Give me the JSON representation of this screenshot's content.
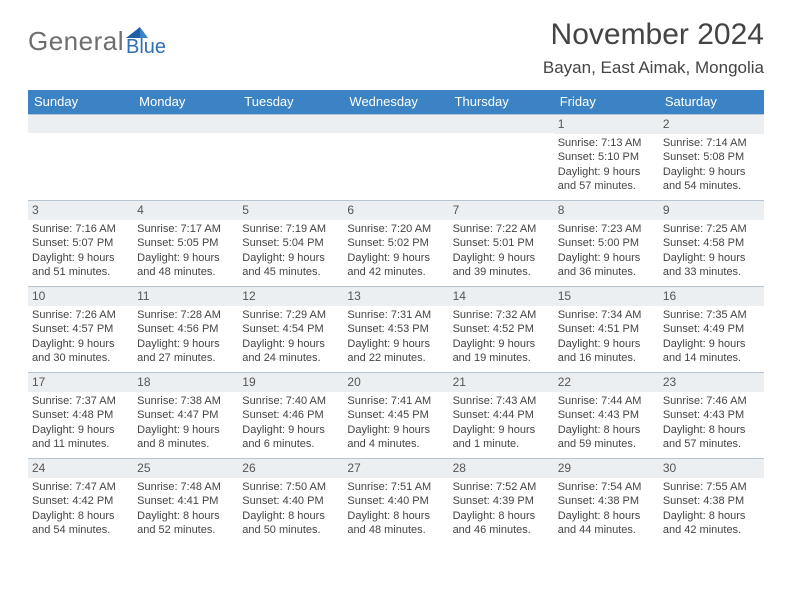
{
  "logo": {
    "general": "General",
    "blue": "Blue"
  },
  "title": "November 2024",
  "location": "Bayan, East Aimak, Mongolia",
  "colors": {
    "header_bg": "#3b83c4",
    "header_text": "#ffffff",
    "daynum_bg": "#eceff1",
    "border": "#b8c6d4",
    "text": "#444444",
    "logo_gray": "#6e6e6e",
    "logo_blue": "#2f6fb3"
  },
  "weekdays": [
    "Sunday",
    "Monday",
    "Tuesday",
    "Wednesday",
    "Thursday",
    "Friday",
    "Saturday"
  ],
  "cells": [
    {
      "n": "",
      "sr": "",
      "ss": "",
      "d": ""
    },
    {
      "n": "",
      "sr": "",
      "ss": "",
      "d": ""
    },
    {
      "n": "",
      "sr": "",
      "ss": "",
      "d": ""
    },
    {
      "n": "",
      "sr": "",
      "ss": "",
      "d": ""
    },
    {
      "n": "",
      "sr": "",
      "ss": "",
      "d": ""
    },
    {
      "n": "1",
      "sr": "Sunrise: 7:13 AM",
      "ss": "Sunset: 5:10 PM",
      "d": "Daylight: 9 hours and 57 minutes."
    },
    {
      "n": "2",
      "sr": "Sunrise: 7:14 AM",
      "ss": "Sunset: 5:08 PM",
      "d": "Daylight: 9 hours and 54 minutes."
    },
    {
      "n": "3",
      "sr": "Sunrise: 7:16 AM",
      "ss": "Sunset: 5:07 PM",
      "d": "Daylight: 9 hours and 51 minutes."
    },
    {
      "n": "4",
      "sr": "Sunrise: 7:17 AM",
      "ss": "Sunset: 5:05 PM",
      "d": "Daylight: 9 hours and 48 minutes."
    },
    {
      "n": "5",
      "sr": "Sunrise: 7:19 AM",
      "ss": "Sunset: 5:04 PM",
      "d": "Daylight: 9 hours and 45 minutes."
    },
    {
      "n": "6",
      "sr": "Sunrise: 7:20 AM",
      "ss": "Sunset: 5:02 PM",
      "d": "Daylight: 9 hours and 42 minutes."
    },
    {
      "n": "7",
      "sr": "Sunrise: 7:22 AM",
      "ss": "Sunset: 5:01 PM",
      "d": "Daylight: 9 hours and 39 minutes."
    },
    {
      "n": "8",
      "sr": "Sunrise: 7:23 AM",
      "ss": "Sunset: 5:00 PM",
      "d": "Daylight: 9 hours and 36 minutes."
    },
    {
      "n": "9",
      "sr": "Sunrise: 7:25 AM",
      "ss": "Sunset: 4:58 PM",
      "d": "Daylight: 9 hours and 33 minutes."
    },
    {
      "n": "10",
      "sr": "Sunrise: 7:26 AM",
      "ss": "Sunset: 4:57 PM",
      "d": "Daylight: 9 hours and 30 minutes."
    },
    {
      "n": "11",
      "sr": "Sunrise: 7:28 AM",
      "ss": "Sunset: 4:56 PM",
      "d": "Daylight: 9 hours and 27 minutes."
    },
    {
      "n": "12",
      "sr": "Sunrise: 7:29 AM",
      "ss": "Sunset: 4:54 PM",
      "d": "Daylight: 9 hours and 24 minutes."
    },
    {
      "n": "13",
      "sr": "Sunrise: 7:31 AM",
      "ss": "Sunset: 4:53 PM",
      "d": "Daylight: 9 hours and 22 minutes."
    },
    {
      "n": "14",
      "sr": "Sunrise: 7:32 AM",
      "ss": "Sunset: 4:52 PM",
      "d": "Daylight: 9 hours and 19 minutes."
    },
    {
      "n": "15",
      "sr": "Sunrise: 7:34 AM",
      "ss": "Sunset: 4:51 PM",
      "d": "Daylight: 9 hours and 16 minutes."
    },
    {
      "n": "16",
      "sr": "Sunrise: 7:35 AM",
      "ss": "Sunset: 4:49 PM",
      "d": "Daylight: 9 hours and 14 minutes."
    },
    {
      "n": "17",
      "sr": "Sunrise: 7:37 AM",
      "ss": "Sunset: 4:48 PM",
      "d": "Daylight: 9 hours and 11 minutes."
    },
    {
      "n": "18",
      "sr": "Sunrise: 7:38 AM",
      "ss": "Sunset: 4:47 PM",
      "d": "Daylight: 9 hours and 8 minutes."
    },
    {
      "n": "19",
      "sr": "Sunrise: 7:40 AM",
      "ss": "Sunset: 4:46 PM",
      "d": "Daylight: 9 hours and 6 minutes."
    },
    {
      "n": "20",
      "sr": "Sunrise: 7:41 AM",
      "ss": "Sunset: 4:45 PM",
      "d": "Daylight: 9 hours and 4 minutes."
    },
    {
      "n": "21",
      "sr": "Sunrise: 7:43 AM",
      "ss": "Sunset: 4:44 PM",
      "d": "Daylight: 9 hours and 1 minute."
    },
    {
      "n": "22",
      "sr": "Sunrise: 7:44 AM",
      "ss": "Sunset: 4:43 PM",
      "d": "Daylight: 8 hours and 59 minutes."
    },
    {
      "n": "23",
      "sr": "Sunrise: 7:46 AM",
      "ss": "Sunset: 4:43 PM",
      "d": "Daylight: 8 hours and 57 minutes."
    },
    {
      "n": "24",
      "sr": "Sunrise: 7:47 AM",
      "ss": "Sunset: 4:42 PM",
      "d": "Daylight: 8 hours and 54 minutes."
    },
    {
      "n": "25",
      "sr": "Sunrise: 7:48 AM",
      "ss": "Sunset: 4:41 PM",
      "d": "Daylight: 8 hours and 52 minutes."
    },
    {
      "n": "26",
      "sr": "Sunrise: 7:50 AM",
      "ss": "Sunset: 4:40 PM",
      "d": "Daylight: 8 hours and 50 minutes."
    },
    {
      "n": "27",
      "sr": "Sunrise: 7:51 AM",
      "ss": "Sunset: 4:40 PM",
      "d": "Daylight: 8 hours and 48 minutes."
    },
    {
      "n": "28",
      "sr": "Sunrise: 7:52 AM",
      "ss": "Sunset: 4:39 PM",
      "d": "Daylight: 8 hours and 46 minutes."
    },
    {
      "n": "29",
      "sr": "Sunrise: 7:54 AM",
      "ss": "Sunset: 4:38 PM",
      "d": "Daylight: 8 hours and 44 minutes."
    },
    {
      "n": "30",
      "sr": "Sunrise: 7:55 AM",
      "ss": "Sunset: 4:38 PM",
      "d": "Daylight: 8 hours and 42 minutes."
    }
  ]
}
